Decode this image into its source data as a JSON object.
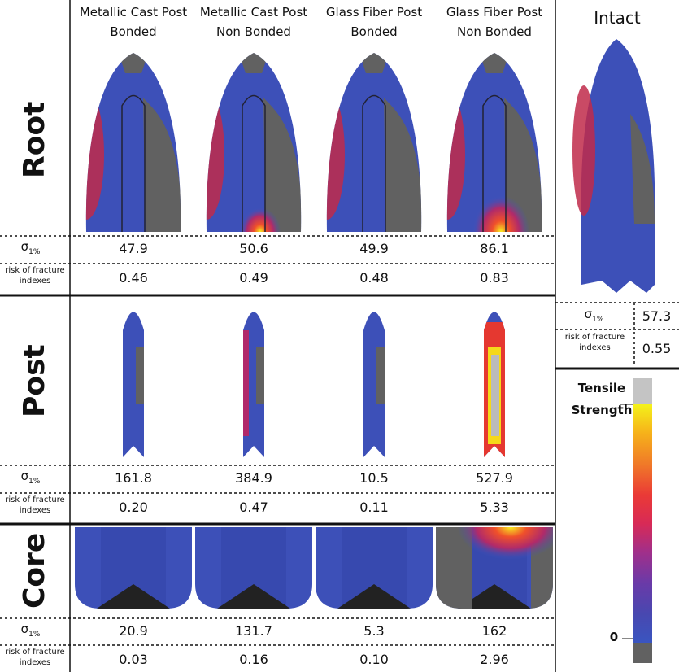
{
  "column_headers": [
    [
      "Metallic Cast Post",
      "Bonded"
    ],
    [
      "Metallic Cast Post",
      "Non Bonded"
    ],
    [
      "Glass Fiber Post",
      "Bonded"
    ],
    [
      "Glass Fiber Post",
      "Non Bonded"
    ]
  ],
  "sections": [
    {
      "label": "Root",
      "sigma": [
        "47.9",
        "50.6",
        "49.9",
        "86.1"
      ],
      "risk": [
        "0.46",
        "0.49",
        "0.48",
        "0.83"
      ]
    },
    {
      "label": "Post",
      "sigma": [
        "161.8",
        "384.9",
        "10.5",
        "527.9"
      ],
      "risk": [
        "0.20",
        "0.47",
        "0.11",
        "5.33"
      ]
    },
    {
      "label": "Core",
      "sigma": [
        "20.9",
        "131.7",
        "5.3",
        "162"
      ],
      "risk": [
        "0.03",
        "0.16",
        "0.10",
        "2.96"
      ]
    }
  ],
  "sigma_label": {
    "symbol": "σ",
    "subscript": "1%"
  },
  "risk_label": "risk of fracture indexes",
  "intact": {
    "title": "Intact",
    "sigma": "57.3",
    "risk": "0.55"
  },
  "legend": {
    "title_lines": [
      "Tensile",
      "Strength"
    ],
    "zero_label": "0"
  }
}
